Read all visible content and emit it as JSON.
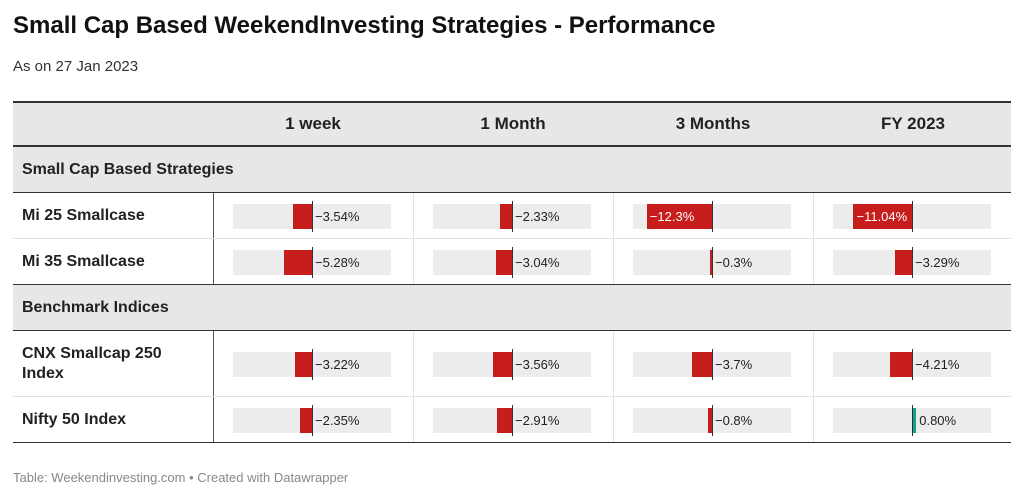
{
  "title": "Small Cap Based WeekendInvesting Strategies - Performance",
  "subtitle": "As on 27 Jan 2023",
  "footer": "Table: Weekendinvesting.com • Created with Datawrapper",
  "colors": {
    "negative": "#c71e1d",
    "positive": "#15a18b",
    "cell_bg": "#ececec"
  },
  "columns": [
    "1 week",
    "1 Month",
    "3 Months",
    "FY 2023"
  ],
  "chart_data": {
    "type": "table",
    "columns": [
      "1 week",
      "1 Month",
      "3 Months",
      "FY 2023"
    ],
    "groups": [
      {
        "name": "Small Cap Based Strategies",
        "rows": [
          {
            "label": "Mi 25 Smallcase",
            "values": [
              -3.54,
              -2.33,
              -12.3,
              -11.04
            ],
            "labels": [
              "−3.54%",
              "−2.33%",
              "−12.3%",
              "−11.04%"
            ]
          },
          {
            "label": "Mi 35 Smallcase",
            "values": [
              -5.28,
              -3.04,
              -0.3,
              -3.29
            ],
            "labels": [
              "−5.28%",
              "−3.04%",
              "−0.3%",
              "−3.29%"
            ]
          }
        ]
      },
      {
        "name": "Benchmark Indices",
        "rows": [
          {
            "label": "CNX Smallcap 250 Index",
            "values": [
              -3.22,
              -3.56,
              -3.7,
              -4.21
            ],
            "labels": [
              "−3.22%",
              "−3.56%",
              "−3.7%",
              "−4.21%"
            ]
          },
          {
            "label": "Nifty 50 Index",
            "values": [
              -2.35,
              -2.91,
              -0.8,
              0.8
            ],
            "labels": [
              "−2.35%",
              "−2.91%",
              "−0.8%",
              "0.80%"
            ]
          }
        ]
      }
    ]
  }
}
